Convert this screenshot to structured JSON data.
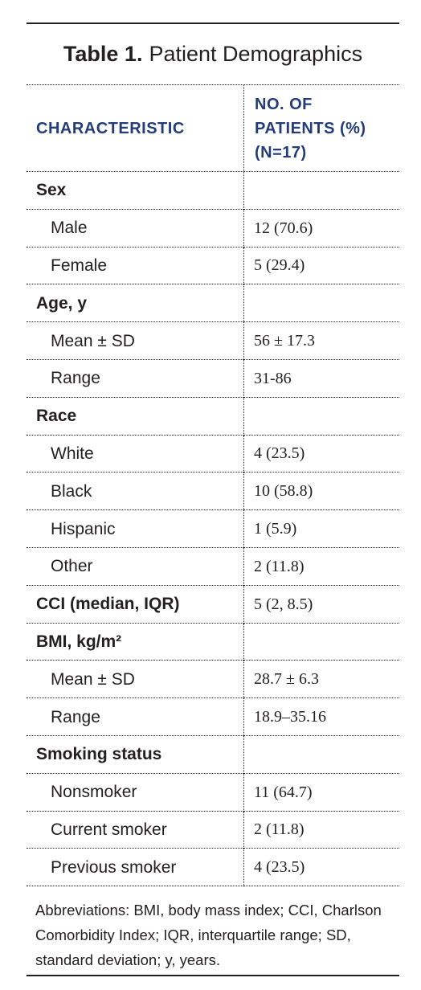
{
  "title": {
    "label": "Table 1.",
    "text": "Patient Demographics"
  },
  "header": {
    "characteristic": "CHARACTERISTIC",
    "patients_line1": "NO. OF",
    "patients_line2": "PATIENTS (%)",
    "patients_line3": "(N=17)"
  },
  "rows": [
    {
      "type": "section",
      "label": "Sex",
      "value": ""
    },
    {
      "type": "item",
      "label": "Male",
      "value": "12 (70.6)"
    },
    {
      "type": "item",
      "label": "Female",
      "value": "5 (29.4)"
    },
    {
      "type": "section",
      "label": "Age, y",
      "value": ""
    },
    {
      "type": "item",
      "label": "Mean ± SD",
      "value": "56 ± 17.3"
    },
    {
      "type": "item",
      "label": "Range",
      "value": "31-86"
    },
    {
      "type": "section",
      "label": "Race",
      "value": ""
    },
    {
      "type": "item",
      "label": "White",
      "value": "4 (23.5)"
    },
    {
      "type": "item",
      "label": "Black",
      "value": "10 (58.8)"
    },
    {
      "type": "item",
      "label": "Hispanic",
      "value": "1 (5.9)"
    },
    {
      "type": "item",
      "label": "Other",
      "value": "2 (11.8)"
    },
    {
      "type": "section",
      "label": "CCI (median, IQR)",
      "value": "5 (2, 8.5)"
    },
    {
      "type": "section",
      "label": "BMI, kg/m²",
      "value": ""
    },
    {
      "type": "item",
      "label": "Mean ± SD",
      "value": "28.7 ± 6.3"
    },
    {
      "type": "item",
      "label": "Range",
      "value": "18.9–35.16"
    },
    {
      "type": "section",
      "label": "Smoking status",
      "value": ""
    },
    {
      "type": "item",
      "label": "Nonsmoker",
      "value": "11 (64.7)"
    },
    {
      "type": "item",
      "label": "Current smoker",
      "value": "2 (11.8)"
    },
    {
      "type": "item",
      "label": "Previous smoker",
      "value": "4 (23.5)"
    }
  ],
  "footnote": "Abbreviations: BMI, body mass index; CCI, Charlson Comorbidity Index; IQR, interquartile range; SD, standard deviation; y, years."
}
